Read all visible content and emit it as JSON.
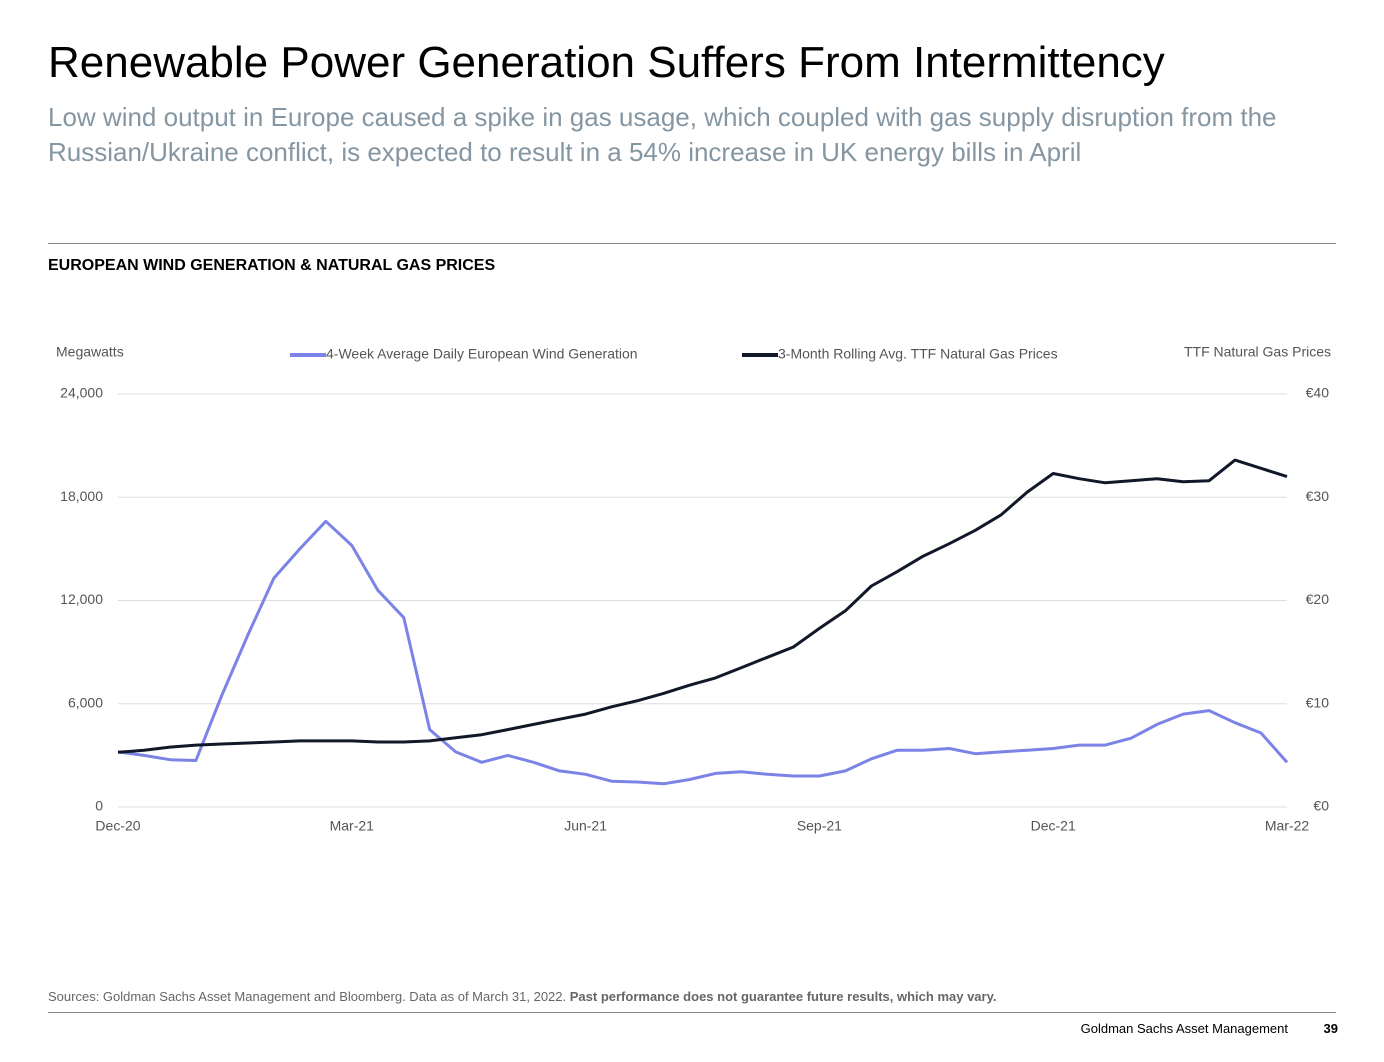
{
  "header": {
    "title": "Renewable Power Generation Suffers From Intermittency",
    "subtitle": "Low wind output in Europe caused a spike in gas usage, which coupled with gas supply disruption from the Russian/Ukraine conflict, is expected to result in a 54% increase in UK energy bills in April"
  },
  "chart_data": {
    "type": "line",
    "title": "EUROPEAN WIND GENERATION & NATURAL GAS PRICES",
    "ylabel": "Megawatts",
    "y2label": "TTF Natural Gas Prices",
    "categories": [
      "Dec-20",
      null,
      null,
      null,
      null,
      null,
      null,
      null,
      null,
      "Mar-21",
      null,
      null,
      null,
      null,
      null,
      null,
      null,
      null,
      "Jun-21",
      null,
      null,
      null,
      null,
      null,
      null,
      null,
      null,
      "Sep-21",
      null,
      null,
      null,
      null,
      null,
      null,
      null,
      null,
      "Dec-21",
      null,
      null,
      null,
      null,
      null,
      null,
      null,
      null,
      "Mar-22"
    ],
    "series": [
      {
        "name": "4-Week Average Daily European Wind Generation",
        "color": "#7b83e6",
        "values": [
          3200,
          3000,
          2750,
          2700,
          6500,
          10000,
          13300,
          15000,
          16600,
          15200,
          12600,
          11000,
          4500,
          3200,
          2600,
          3000,
          2600,
          2100,
          1900,
          1500,
          1450,
          1350,
          1600,
          1950,
          2050,
          1900,
          1800,
          1800,
          2100,
          2800,
          3300,
          3300,
          3400,
          3100,
          3200,
          3300,
          3400,
          3600,
          3600,
          4000,
          4800,
          5400,
          5600,
          4900,
          4300,
          2600
        ]
      },
      {
        "name": "3-Month Rolling Avg. TTF Natural Gas Prices",
        "color": "#111827",
        "axis": "y2",
        "values": [
          5.3,
          5.5,
          5.8,
          6.0,
          6.1,
          6.2,
          6.3,
          6.4,
          6.4,
          6.4,
          6.3,
          6.3,
          6.4,
          6.7,
          7.0,
          7.5,
          8.0,
          8.5,
          9.0,
          9.7,
          10.3,
          11.0,
          11.8,
          12.5,
          13.5,
          14.5,
          15.5,
          17.3,
          19.0,
          21.4,
          22.8,
          24.3,
          25.5,
          26.8,
          28.3,
          30.5,
          32.3,
          31.8,
          31.4,
          31.6,
          31.8,
          31.5,
          31.6,
          33.6,
          32.8,
          32.0
        ]
      }
    ],
    "ylim": [
      0,
      24000
    ],
    "yticks": [
      0,
      {
        "value": 6000,
        "label": "6,000"
      },
      {
        "value": 12000,
        "label": "12,000"
      },
      {
        "value": 18000,
        "label": "18,000"
      },
      {
        "value": 24000,
        "label": "24,000"
      }
    ],
    "y2lim": [
      0,
      40
    ],
    "y2ticks": [
      {
        "value": 0,
        "label": "€0"
      },
      {
        "value": 10,
        "label": "€10"
      },
      {
        "value": 20,
        "label": "€20"
      },
      {
        "value": 30,
        "label": "€30"
      },
      {
        "value": 40,
        "label": "€40"
      }
    ],
    "grid": true
  },
  "footer": {
    "source": "Sources: Goldman Sachs Asset Management and Bloomberg. Data as of March 31, 2022.",
    "disclaimer": "Past performance does not guarantee future results, which may vary.",
    "company": "Goldman Sachs Asset Management",
    "page": 39
  }
}
